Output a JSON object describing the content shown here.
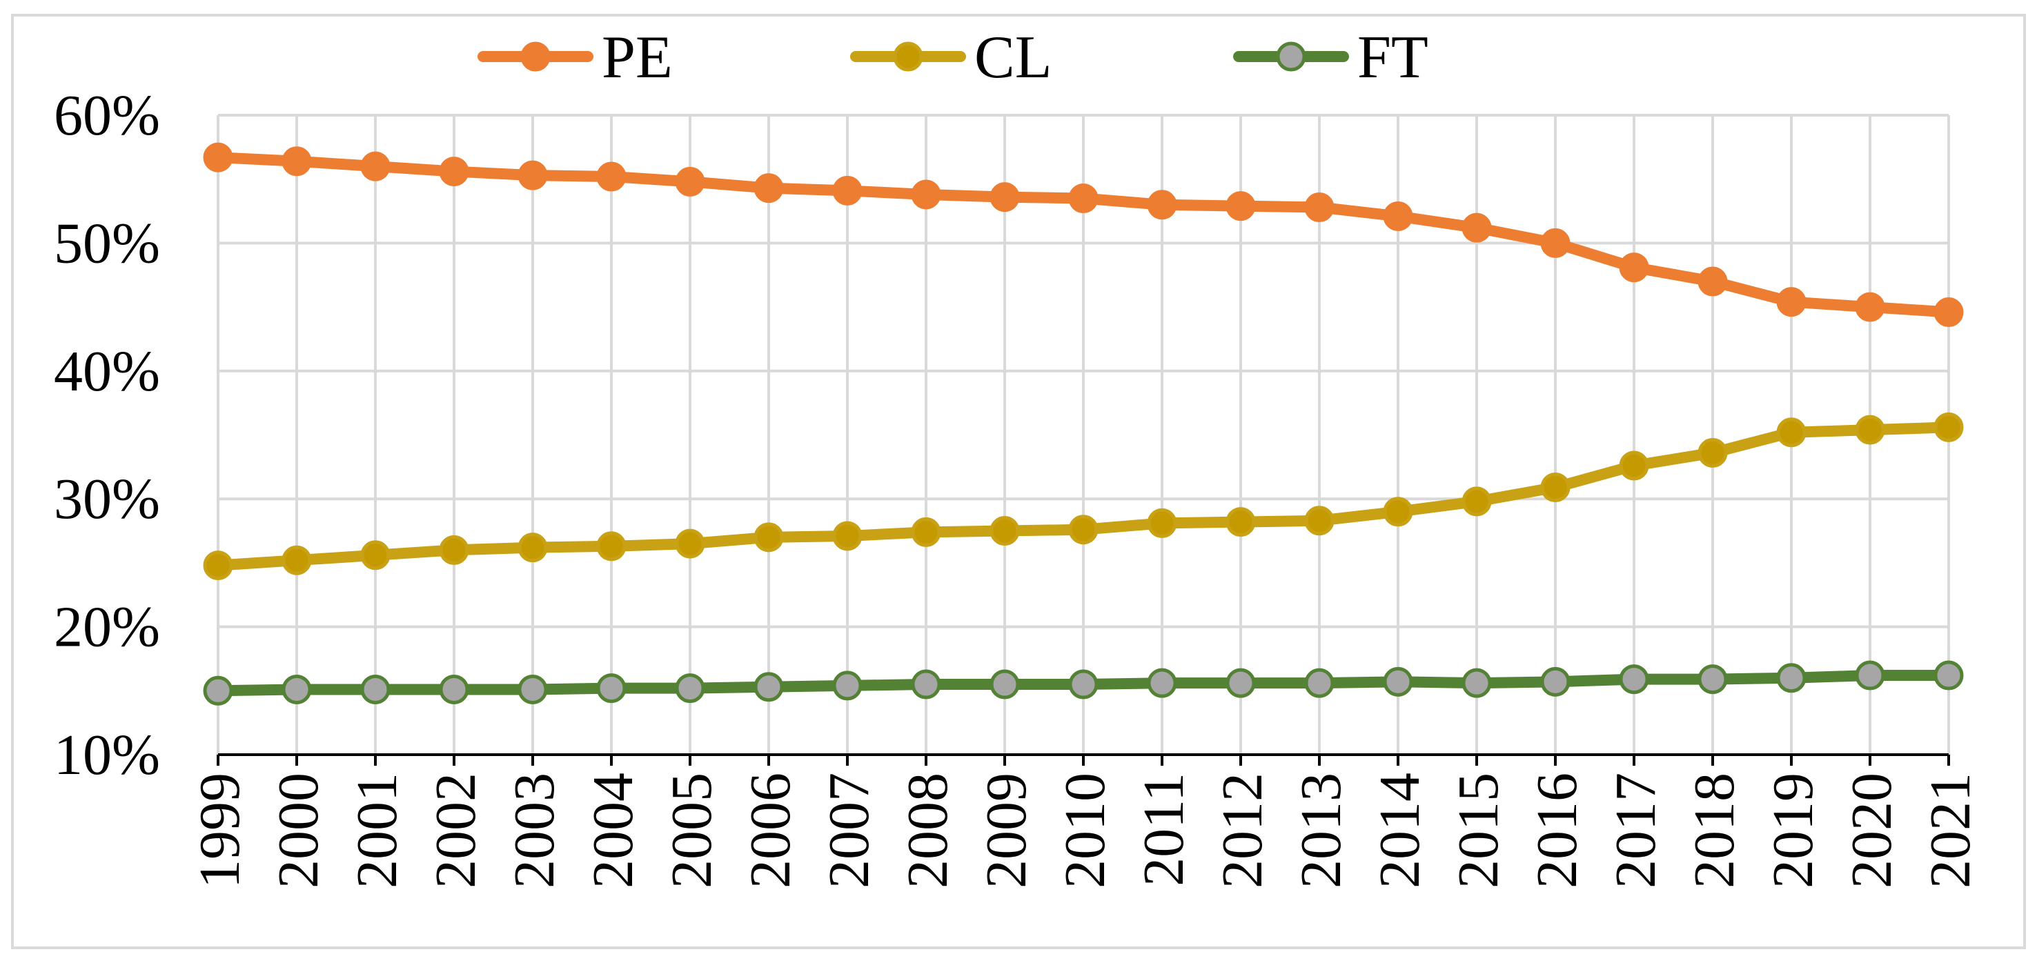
{
  "chart_data": {
    "type": "line",
    "title": "",
    "xlabel": "",
    "ylabel": "",
    "ylim": [
      0.1,
      0.6
    ],
    "yticks": [
      0.1,
      0.2,
      0.3,
      0.4,
      0.5,
      0.6
    ],
    "ytick_labels": [
      "10%",
      "20%",
      "30%",
      "40%",
      "50%",
      "60%"
    ],
    "grid": true,
    "legend_position": "top-center",
    "categories": [
      "1999",
      "2000",
      "2001",
      "2002",
      "2003",
      "2004",
      "2005",
      "2006",
      "2007",
      "2008",
      "2009",
      "2010",
      "2011",
      "2012",
      "2013",
      "2014",
      "2015",
      "2016",
      "2017",
      "2018",
      "2019",
      "2020",
      "2021"
    ],
    "series": [
      {
        "name": "PE",
        "line_color": "#ED7D31",
        "marker_fill": "#ED7D31",
        "marker_stroke": "#ED7D31",
        "values": [
          0.567,
          0.564,
          0.56,
          0.556,
          0.553,
          0.552,
          0.548,
          0.543,
          0.541,
          0.538,
          0.536,
          0.535,
          0.53,
          0.529,
          0.528,
          0.521,
          0.512,
          0.5,
          0.481,
          0.47,
          0.454,
          0.45,
          0.446
        ]
      },
      {
        "name": "CL",
        "line_color": "#C9A114",
        "marker_fill": "#C49A00",
        "marker_stroke": "#C9A114",
        "values": [
          0.248,
          0.252,
          0.256,
          0.26,
          0.262,
          0.263,
          0.265,
          0.27,
          0.271,
          0.274,
          0.275,
          0.276,
          0.281,
          0.282,
          0.283,
          0.29,
          0.298,
          0.309,
          0.326,
          0.336,
          0.352,
          0.354,
          0.356
        ]
      },
      {
        "name": "FT",
        "line_color": "#548235",
        "marker_fill": "#A6A6A6",
        "marker_stroke": "#548235",
        "values": [
          0.15,
          0.151,
          0.151,
          0.151,
          0.151,
          0.152,
          0.152,
          0.153,
          0.154,
          0.155,
          0.155,
          0.155,
          0.156,
          0.156,
          0.156,
          0.157,
          0.156,
          0.157,
          0.159,
          0.159,
          0.16,
          0.162,
          0.162
        ]
      }
    ]
  }
}
